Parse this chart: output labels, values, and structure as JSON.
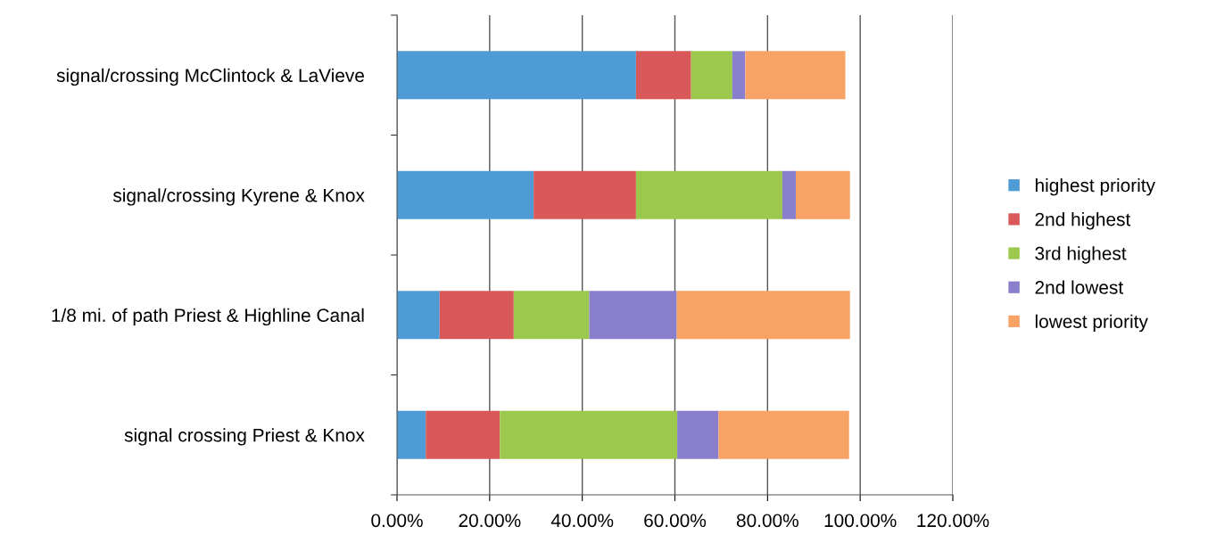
{
  "chart_data": {
    "type": "bar",
    "orientation": "horizontal",
    "stacked": true,
    "categories": [
      "signal/crossing McClintock & LaVieve",
      "signal/crossing Kyrene & Knox",
      "1/8 mi. of path Priest & Highline Canal",
      "signal crossing Priest & Knox"
    ],
    "series": [
      {
        "name": "highest priority",
        "color": "#4f9bd5",
        "values": [
          51.6,
          29.5,
          9.2,
          6.2
        ]
      },
      {
        "name": "2nd highest",
        "color": "#d9585a",
        "values": [
          11.9,
          22.1,
          16.0,
          16.0
        ]
      },
      {
        "name": "3rd highest",
        "color": "#9bc84d",
        "values": [
          8.9,
          31.6,
          16.3,
          38.3
        ]
      },
      {
        "name": "2nd lowest",
        "color": "#8a7fcd",
        "values": [
          2.8,
          2.9,
          18.9,
          8.9
        ]
      },
      {
        "name": "lowest priority",
        "color": "#f9a266",
        "values": [
          21.6,
          11.7,
          37.4,
          28.2
        ]
      }
    ],
    "xlim": [
      0,
      120
    ],
    "xticks": [
      {
        "value": 0,
        "label": "0.00%"
      },
      {
        "value": 20,
        "label": "20.00%"
      },
      {
        "value": 40,
        "label": "40.00%"
      },
      {
        "value": 60,
        "label": "60.00%"
      },
      {
        "value": 80,
        "label": "80.00%"
      },
      {
        "value": 100,
        "label": "100.00%"
      },
      {
        "value": 120,
        "label": "120.00%"
      }
    ],
    "grid": "x",
    "legend": "right"
  }
}
